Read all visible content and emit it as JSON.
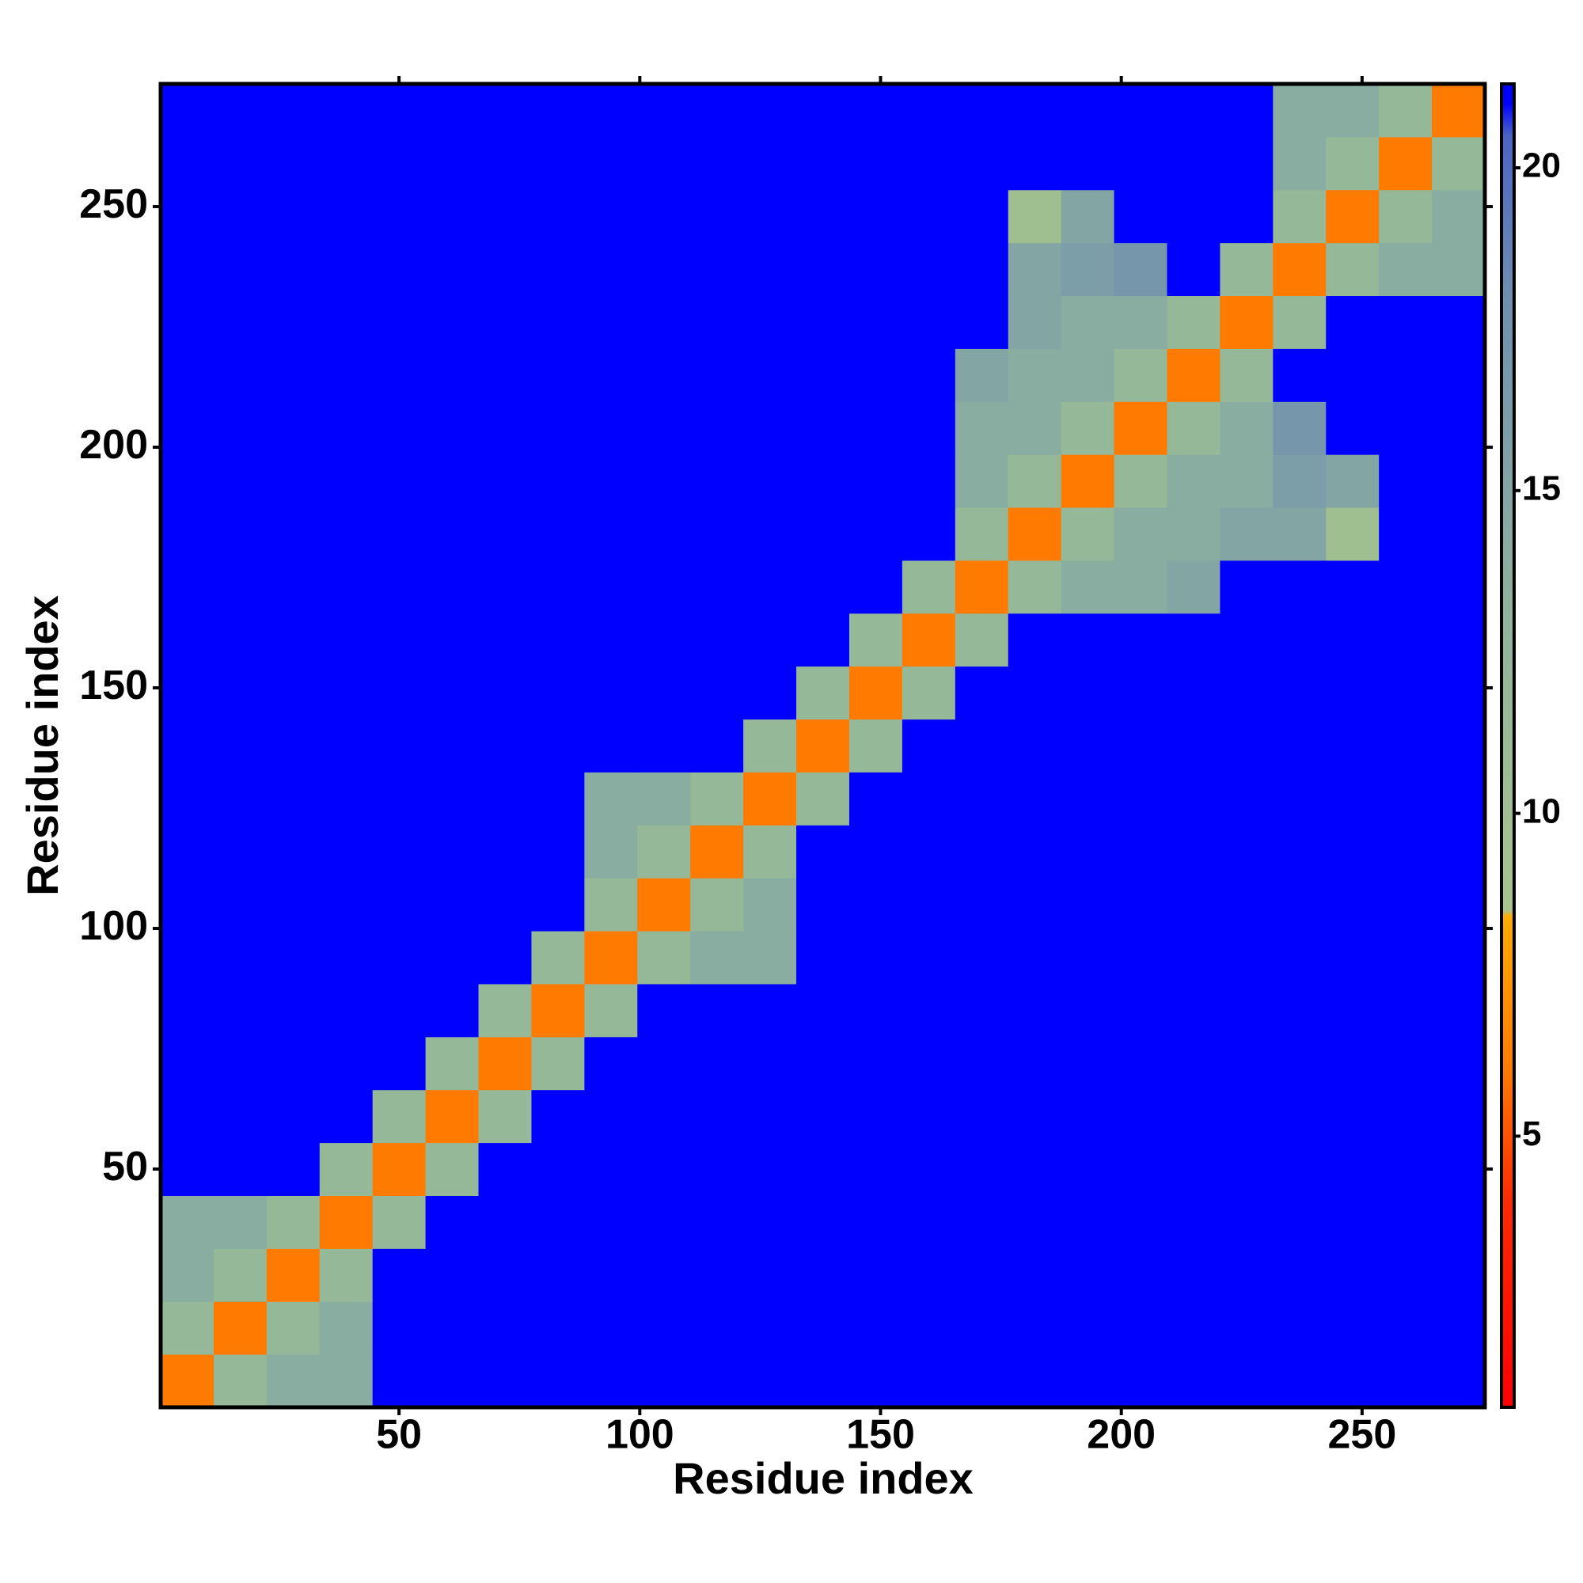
{
  "chart_data": {
    "type": "heatmap",
    "xlabel": "Residue index",
    "ylabel": "Residue index",
    "x": [
      6,
      17,
      28,
      39,
      50,
      61,
      72,
      83,
      94,
      105,
      116,
      127,
      138,
      149,
      160,
      171,
      182,
      193,
      204,
      215,
      226,
      237,
      248,
      259,
      270
    ],
    "y": [
      6,
      17,
      28,
      39,
      50,
      61,
      72,
      83,
      94,
      105,
      116,
      127,
      138,
      149,
      160,
      171,
      182,
      193,
      204,
      215,
      226,
      237,
      248,
      259,
      270
    ],
    "z": [
      [
        6,
        12,
        14,
        14,
        21,
        21,
        21,
        21,
        21,
        21,
        21,
        21,
        21,
        21,
        21,
        21,
        21,
        21,
        21,
        21,
        21,
        21,
        21,
        21,
        21
      ],
      [
        12,
        6,
        12,
        14,
        21,
        21,
        21,
        21,
        21,
        21,
        21,
        21,
        21,
        21,
        21,
        21,
        21,
        21,
        21,
        21,
        21,
        21,
        21,
        21,
        21
      ],
      [
        14,
        12,
        6,
        12,
        21,
        21,
        21,
        21,
        21,
        21,
        21,
        21,
        21,
        21,
        21,
        21,
        21,
        21,
        21,
        21,
        21,
        21,
        21,
        21,
        21
      ],
      [
        14,
        14,
        12,
        6,
        12,
        21,
        21,
        21,
        21,
        21,
        21,
        21,
        21,
        21,
        21,
        21,
        21,
        21,
        21,
        21,
        21,
        21,
        21,
        21,
        21
      ],
      [
        21,
        21,
        21,
        12,
        6,
        12,
        21,
        21,
        21,
        21,
        21,
        21,
        21,
        21,
        21,
        21,
        21,
        21,
        21,
        21,
        21,
        21,
        21,
        21,
        21
      ],
      [
        21,
        21,
        21,
        21,
        12,
        6,
        12,
        21,
        21,
        21,
        21,
        21,
        21,
        21,
        21,
        21,
        21,
        21,
        21,
        21,
        21,
        21,
        21,
        21,
        21
      ],
      [
        21,
        21,
        21,
        21,
        21,
        12,
        6,
        12,
        21,
        21,
        21,
        21,
        21,
        21,
        21,
        21,
        21,
        21,
        21,
        21,
        21,
        21,
        21,
        21,
        21
      ],
      [
        21,
        21,
        21,
        21,
        21,
        21,
        12,
        6,
        12,
        21,
        21,
        21,
        21,
        21,
        21,
        21,
        21,
        21,
        21,
        21,
        21,
        21,
        21,
        21,
        21
      ],
      [
        21,
        21,
        21,
        21,
        21,
        21,
        21,
        12,
        6,
        12,
        14,
        14,
        21,
        21,
        21,
        21,
        21,
        21,
        21,
        21,
        21,
        21,
        21,
        21,
        21
      ],
      [
        21,
        21,
        21,
        21,
        21,
        21,
        21,
        21,
        12,
        6,
        12,
        14,
        21,
        21,
        21,
        21,
        21,
        21,
        21,
        21,
        21,
        21,
        21,
        21,
        21
      ],
      [
        21,
        21,
        21,
        21,
        21,
        21,
        21,
        21,
        14,
        12,
        6,
        12,
        21,
        21,
        21,
        21,
        21,
        21,
        21,
        21,
        21,
        21,
        21,
        21,
        21
      ],
      [
        21,
        21,
        21,
        21,
        21,
        21,
        21,
        21,
        14,
        14,
        12,
        6,
        12,
        21,
        21,
        21,
        21,
        21,
        21,
        21,
        21,
        21,
        21,
        21,
        21
      ],
      [
        21,
        21,
        21,
        21,
        21,
        21,
        21,
        21,
        21,
        21,
        21,
        12,
        6,
        12,
        21,
        21,
        21,
        21,
        21,
        21,
        21,
        21,
        21,
        21,
        21
      ],
      [
        21,
        21,
        21,
        21,
        21,
        21,
        21,
        21,
        21,
        21,
        21,
        21,
        12,
        6,
        12,
        21,
        21,
        21,
        21,
        21,
        21,
        21,
        21,
        21,
        21
      ],
      [
        21,
        21,
        21,
        21,
        21,
        21,
        21,
        21,
        21,
        21,
        21,
        21,
        21,
        12,
        6,
        12,
        21,
        21,
        21,
        21,
        21,
        21,
        21,
        21,
        21
      ],
      [
        21,
        21,
        21,
        21,
        21,
        21,
        21,
        21,
        21,
        21,
        21,
        21,
        21,
        21,
        12,
        6,
        12,
        14,
        14,
        15,
        21,
        21,
        21,
        21,
        21
      ],
      [
        21,
        21,
        21,
        21,
        21,
        21,
        21,
        21,
        21,
        21,
        21,
        21,
        21,
        21,
        21,
        12,
        6,
        12,
        14,
        14,
        15,
        15,
        10,
        21,
        21
      ],
      [
        21,
        21,
        21,
        21,
        21,
        21,
        21,
        21,
        21,
        21,
        21,
        21,
        21,
        21,
        21,
        14,
        12,
        6,
        12,
        14,
        14,
        16,
        15,
        21,
        21
      ],
      [
        21,
        21,
        21,
        21,
        21,
        21,
        21,
        21,
        21,
        21,
        21,
        21,
        21,
        21,
        21,
        14,
        14,
        12,
        6,
        12,
        14,
        17,
        21,
        21,
        21
      ],
      [
        21,
        21,
        21,
        21,
        21,
        21,
        21,
        21,
        21,
        21,
        21,
        21,
        21,
        21,
        21,
        15,
        14,
        14,
        12,
        6,
        12,
        21,
        21,
        21,
        21
      ],
      [
        21,
        21,
        21,
        21,
        21,
        21,
        21,
        21,
        21,
        21,
        21,
        21,
        21,
        21,
        21,
        21,
        15,
        14,
        14,
        12,
        6,
        12,
        21,
        21,
        21
      ],
      [
        21,
        21,
        21,
        21,
        21,
        21,
        21,
        21,
        21,
        21,
        21,
        21,
        21,
        21,
        21,
        21,
        15,
        16,
        17,
        21,
        12,
        6,
        12,
        14,
        14
      ],
      [
        21,
        21,
        21,
        21,
        21,
        21,
        21,
        21,
        21,
        21,
        21,
        21,
        21,
        21,
        21,
        21,
        10,
        15,
        21,
        21,
        21,
        12,
        6,
        12,
        14
      ],
      [
        21,
        21,
        21,
        21,
        21,
        21,
        21,
        21,
        21,
        21,
        21,
        21,
        21,
        21,
        21,
        21,
        21,
        21,
        21,
        21,
        21,
        14,
        12,
        6,
        12
      ],
      [
        21,
        21,
        21,
        21,
        21,
        21,
        21,
        21,
        21,
        21,
        21,
        21,
        21,
        21,
        21,
        21,
        21,
        21,
        21,
        21,
        21,
        14,
        14,
        12,
        6
      ]
    ],
    "xlim": [
      0.5,
      275.5
    ],
    "ylim": [
      0.5,
      275.5
    ],
    "xticks": [
      50,
      100,
      150,
      200,
      250
    ],
    "yticks": [
      50,
      100,
      150,
      200,
      250
    ],
    "clim": [
      0.8,
      21.3
    ],
    "cticks": [
      5,
      10,
      15,
      20
    ],
    "colorscale": [
      [
        0.8,
        "#ff0000"
      ],
      [
        4,
        "#ff2a00"
      ],
      [
        6,
        "#ff7a00"
      ],
      [
        8.4,
        "#ffaa00"
      ],
      [
        8.5,
        "#a8c48c"
      ],
      [
        13,
        "#90b49c"
      ],
      [
        18,
        "#6f8fb0"
      ],
      [
        20.5,
        "#4a64c4"
      ],
      [
        21,
        "#0000ff"
      ],
      [
        21.3,
        "#0000ff"
      ]
    ]
  }
}
